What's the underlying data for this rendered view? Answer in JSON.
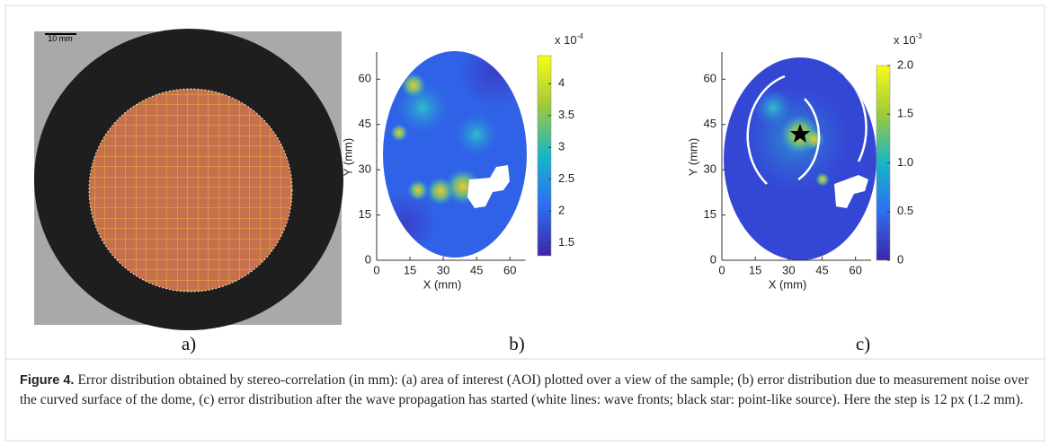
{
  "figure": {
    "panels": [
      {
        "label": "a)",
        "scale_bar": "10 mm"
      },
      {
        "label": "b)",
        "xlabel": "X (mm)",
        "ylabel": "Y (mm)",
        "xlim": [
          0,
          67
        ],
        "ylim": [
          0,
          69
        ],
        "xticks": [
          0,
          15,
          30,
          45,
          60
        ],
        "yticks": [
          0,
          15,
          30,
          45,
          60
        ],
        "colorbar": {
          "exponent": "x 10",
          "power": "-4",
          "lim": [
            1.3,
            4.44
          ],
          "ticks": [
            1.5,
            2,
            2.5,
            3,
            3.5,
            4
          ]
        }
      },
      {
        "label": "c)",
        "xlabel": "X (mm)",
        "ylabel": "Y (mm)",
        "xlim": [
          0,
          67
        ],
        "ylim": [
          0,
          69
        ],
        "xticks": [
          0,
          15,
          30,
          45,
          60
        ],
        "yticks": [
          0,
          15,
          30,
          45,
          60
        ],
        "colorbar": {
          "exponent": "x 10",
          "power": "-3",
          "lim": [
            0,
            2
          ],
          "ticks": [
            0,
            0.5,
            {
              "value": 1,
              "label": "1.0"
            },
            1.5,
            {
              "value": 2,
              "label": "2.0"
            }
          ]
        }
      }
    ],
    "caption": {
      "label": "Figure 4.",
      "text": "Error distribution obtained by stereo-correlation (in mm): (a) area of interest (AOI) plotted over a view of the sample; (b) error distribution due to measurement noise over the curved surface of the dome, (c) error distribution after the wave propagation has started (white lines: wave fronts; black star: point-like source). Here the step is 12 px (1.2 mm)."
    }
  }
}
